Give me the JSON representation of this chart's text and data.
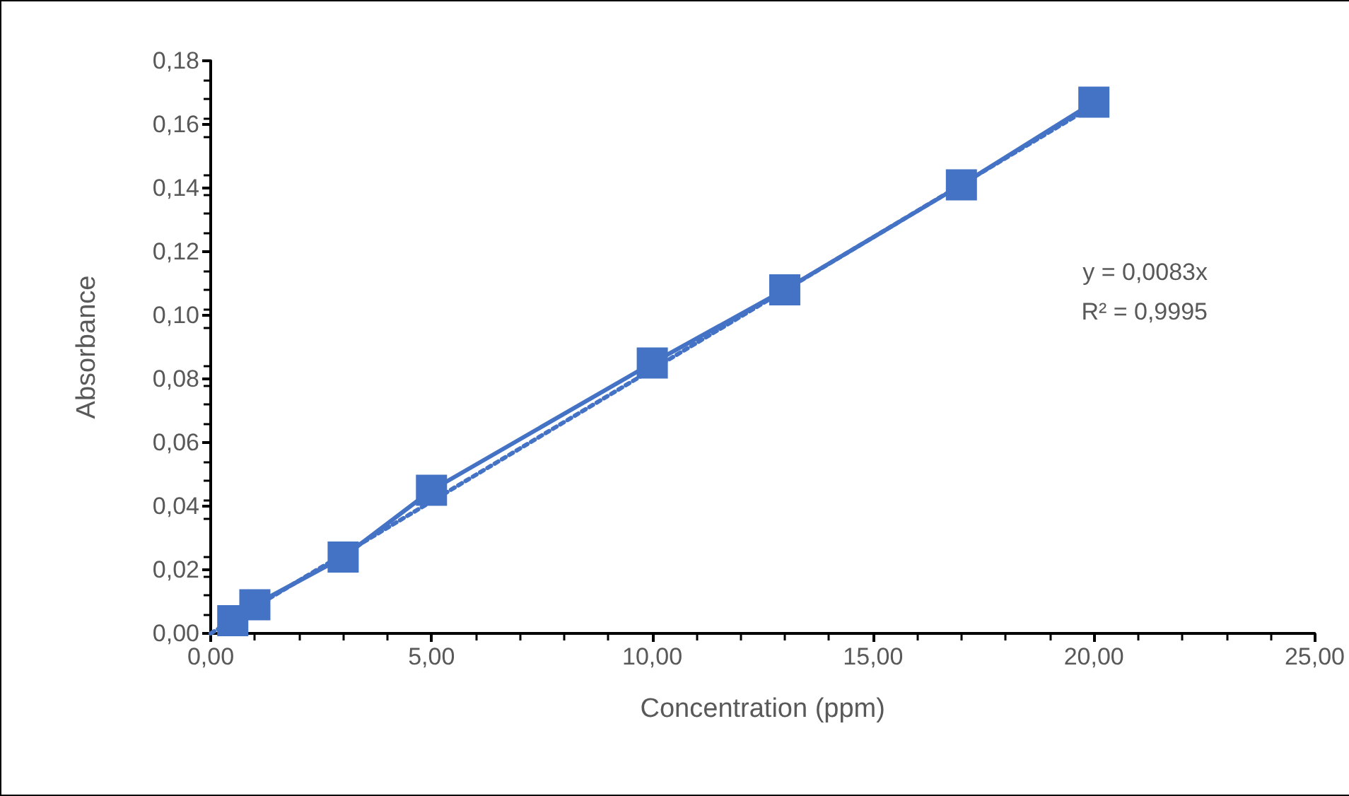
{
  "chart_data": {
    "type": "line",
    "xlabel": "Concentration (ppm)",
    "ylabel": "Absorbance",
    "annotations": [
      "y = 0,0083x",
      "R² = 0,9995"
    ],
    "series": [
      {
        "color": "#4472c4",
        "x": [
          0.5,
          1,
          3,
          5,
          10,
          13,
          17,
          20
        ],
        "values": [
          0.004,
          0.009,
          0.024,
          0.045,
          0.085,
          0.108,
          0.141,
          0.167
        ],
        "marker": "square",
        "line_style": "solid"
      },
      {
        "color": "#4472c4",
        "x": [
          0,
          20
        ],
        "values": [
          0,
          0.166
        ],
        "marker": "none",
        "line_style": "dotted"
      }
    ],
    "xlim": [
      0,
      25
    ],
    "xticks": [
      {
        "value": 0,
        "label": "0,00"
      },
      {
        "value": 5,
        "label": "5,00"
      },
      {
        "value": 10,
        "label": "10,00"
      },
      {
        "value": 15,
        "label": "15,00"
      },
      {
        "value": 20,
        "label": "20,00"
      },
      {
        "value": 25,
        "label": "25,00"
      }
    ],
    "ylim": [
      0,
      0.18
    ],
    "yticks": [
      {
        "value": 0,
        "label": "0,00"
      },
      {
        "value": 0.02,
        "label": "0,02"
      },
      {
        "value": 0.04,
        "label": "0,04"
      },
      {
        "value": 0.06,
        "label": "0,06"
      },
      {
        "value": 0.08,
        "label": "0,08"
      },
      {
        "value": 0.1,
        "label": "0,10"
      },
      {
        "value": 0.12,
        "label": "0,12"
      },
      {
        "value": 0.14,
        "label": "0,14"
      },
      {
        "value": 0.16,
        "label": "0,16"
      },
      {
        "value": 0.18,
        "label": "0,18"
      }
    ],
    "grid": false
  }
}
